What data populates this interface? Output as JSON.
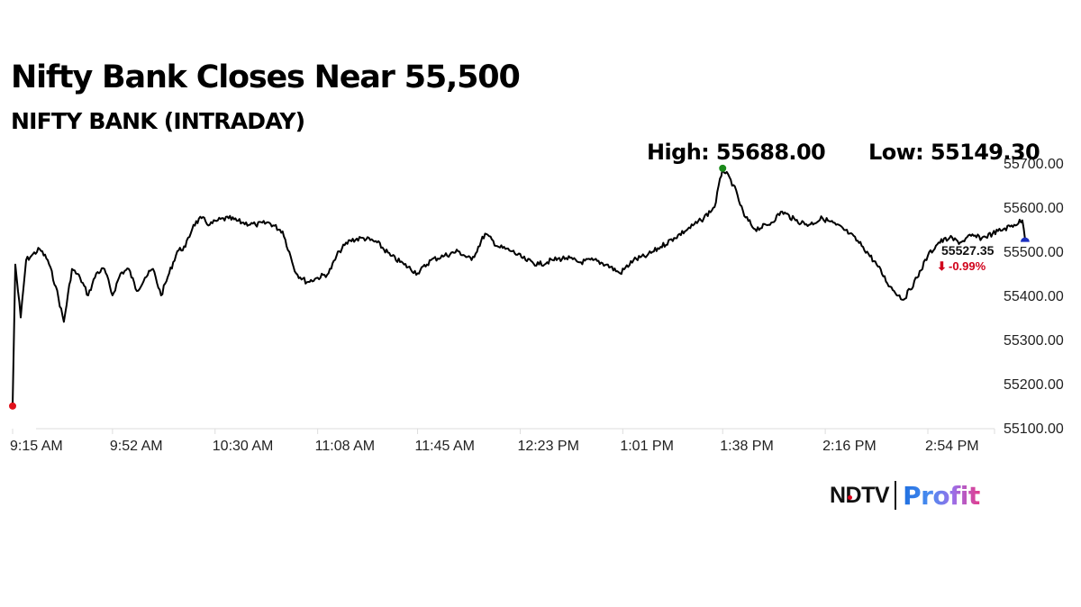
{
  "header": {
    "title": "Nifty Bank Closes Near 55,500",
    "subtitle": "NIFTY BANK (INTRADAY)",
    "high_label": "High: 55688.00",
    "low_label": "Low: 55149.30"
  },
  "last": {
    "price": "55527.35",
    "change": "-0.99%",
    "arrow_icon": "arrow-down-icon"
  },
  "logo": {
    "brand": "NDTV",
    "product": "Profit"
  },
  "colors": {
    "line": "#000000",
    "high_marker": "#1a8a1a",
    "low_marker": "#e0101b",
    "last_marker": "#1b2fbf",
    "change_negative": "#d0021b",
    "grid": "#dddddd"
  },
  "chart_data": {
    "type": "line",
    "title": "Nifty Bank Closes Near 55,500",
    "subtitle": "NIFTY BANK (INTRADAY)",
    "xlabel": "",
    "ylabel": "",
    "x_ticks": [
      "9:15 AM",
      "9:52 AM",
      "10:30 AM",
      "11:08 AM",
      "11:45 AM",
      "12:23 PM",
      "1:01 PM",
      "1:38 PM",
      "2:16 PM",
      "2:54 PM"
    ],
    "y_ticks": [
      "55700.00",
      "55600.00",
      "55500.00",
      "55400.00",
      "55300.00",
      "55200.00",
      "55100.00"
    ],
    "ylim": [
      55100,
      55700
    ],
    "y_axis_position": "right",
    "grid": false,
    "annotations": {
      "high": {
        "label": "High: 55688.00",
        "value": 55688.0,
        "time": "1:38 PM"
      },
      "low": {
        "label": "Low: 55149.30",
        "value": 55149.3,
        "time": "9:15 AM"
      },
      "last": {
        "value": 55527.35,
        "change_pct": "-0.99%"
      }
    },
    "series": [
      {
        "name": "NIFTY BANK",
        "x": [
          "9:15",
          "9:16",
          "9:18",
          "9:20",
          "9:22",
          "9:25",
          "9:28",
          "9:31",
          "9:34",
          "9:37",
          "9:40",
          "9:43",
          "9:46",
          "9:49",
          "9:52",
          "9:55",
          "9:58",
          "10:01",
          "10:04",
          "10:07",
          "10:10",
          "10:13",
          "10:16",
          "10:19",
          "10:22",
          "10:25",
          "10:28",
          "10:31",
          "10:35",
          "10:40",
          "10:45",
          "10:50",
          "10:55",
          "11:00",
          "11:04",
          "11:08",
          "11:12",
          "11:16",
          "11:20",
          "11:25",
          "11:30",
          "11:35",
          "11:40",
          "11:45",
          "11:50",
          "11:55",
          "12:00",
          "12:05",
          "12:10",
          "12:15",
          "12:20",
          "12:25",
          "12:30",
          "12:35",
          "12:40",
          "12:45",
          "12:50",
          "12:55",
          "1:00",
          "1:05",
          "1:10",
          "1:15",
          "1:20",
          "1:25",
          "1:30",
          "1:35",
          "1:38",
          "1:42",
          "1:46",
          "1:50",
          "1:55",
          "2:00",
          "2:05",
          "2:10",
          "2:15",
          "2:20",
          "2:25",
          "2:30",
          "2:35",
          "2:40",
          "2:45",
          "2:50",
          "2:54",
          "2:58",
          "3:02",
          "3:06",
          "3:10",
          "3:14",
          "3:18",
          "3:22",
          "3:26",
          "3:29",
          "3:30"
        ],
        "values": [
          55149.3,
          55470,
          55350,
          55480,
          55490,
          55505,
          55480,
          55420,
          55340,
          55460,
          55440,
          55400,
          55450,
          55460,
          55400,
          55450,
          55460,
          55410,
          55440,
          55460,
          55400,
          55450,
          55500,
          55510,
          55560,
          55575,
          55560,
          55570,
          55575,
          55565,
          55560,
          55565,
          55545,
          55450,
          55430,
          55440,
          55450,
          55500,
          55525,
          55530,
          55520,
          55490,
          55470,
          55450,
          55480,
          55490,
          55500,
          55480,
          55540,
          55510,
          55500,
          55480,
          55470,
          55480,
          55485,
          55475,
          55480,
          55470,
          55450,
          55480,
          55490,
          55510,
          55530,
          55550,
          55570,
          55600,
          55688,
          55650,
          55580,
          55550,
          55560,
          55590,
          55570,
          55560,
          55575,
          55560,
          55540,
          55510,
          55470,
          55420,
          55390,
          55440,
          55490,
          55520,
          55530,
          55520,
          55535,
          55530,
          55540,
          55550,
          55560,
          55570,
          55527.35
        ]
      }
    ]
  }
}
